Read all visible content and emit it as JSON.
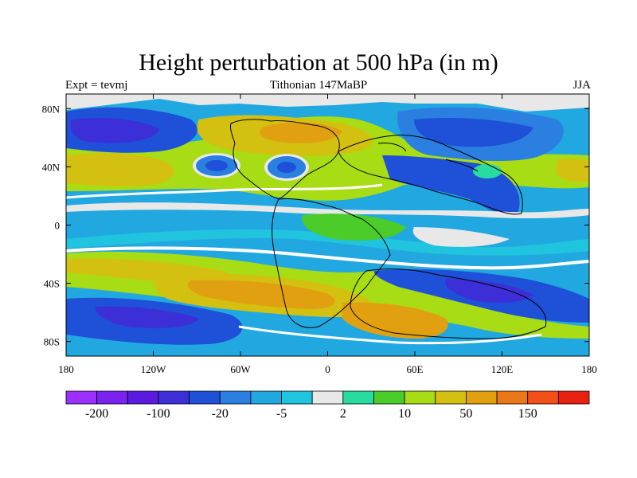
{
  "chart_data": {
    "type": "heatmap",
    "title": "Height perturbation at 500 hPa (in m)",
    "subtitle_left": "Expt = tevmj",
    "subtitle_center": "Tithonian 147MaBP",
    "subtitle_right": "JJA",
    "xlim": [
      -180,
      180
    ],
    "ylim": [
      -90,
      90
    ],
    "x_ticks": [
      {
        "value": -180,
        "label": "180"
      },
      {
        "value": -120,
        "label": "120W"
      },
      {
        "value": -60,
        "label": "60W"
      },
      {
        "value": 0,
        "label": "0"
      },
      {
        "value": 60,
        "label": "60E"
      },
      {
        "value": 120,
        "label": "120E"
      },
      {
        "value": 180,
        "label": "180"
      }
    ],
    "y_ticks": [
      {
        "value": 80,
        "label": "80N"
      },
      {
        "value": 40,
        "label": "40N"
      },
      {
        "value": 0,
        "label": "0"
      },
      {
        "value": -40,
        "label": "40S"
      },
      {
        "value": -80,
        "label": "80S"
      }
    ],
    "colorbar": {
      "colors": [
        "#9b30ff",
        "#7a22f0",
        "#5a1ae0",
        "#3c2fd8",
        "#1e50d8",
        "#2a7fe0",
        "#22a8e0",
        "#20c4de",
        "#e8e8e8",
        "#28dca0",
        "#4ccc2a",
        "#a8dc14",
        "#d4c010",
        "#e0a010",
        "#ea7818",
        "#f25018",
        "#e82010"
      ],
      "labels": [
        {
          "index": 1,
          "label": "-200"
        },
        {
          "index": 3,
          "label": "-100"
        },
        {
          "index": 5,
          "label": "-20"
        },
        {
          "index": 7,
          "label": "-5"
        },
        {
          "index": 9,
          "label": "2"
        },
        {
          "index": 11,
          "label": "10"
        },
        {
          "index": 13,
          "label": "50"
        },
        {
          "index": 15,
          "label": "150"
        }
      ]
    }
  }
}
